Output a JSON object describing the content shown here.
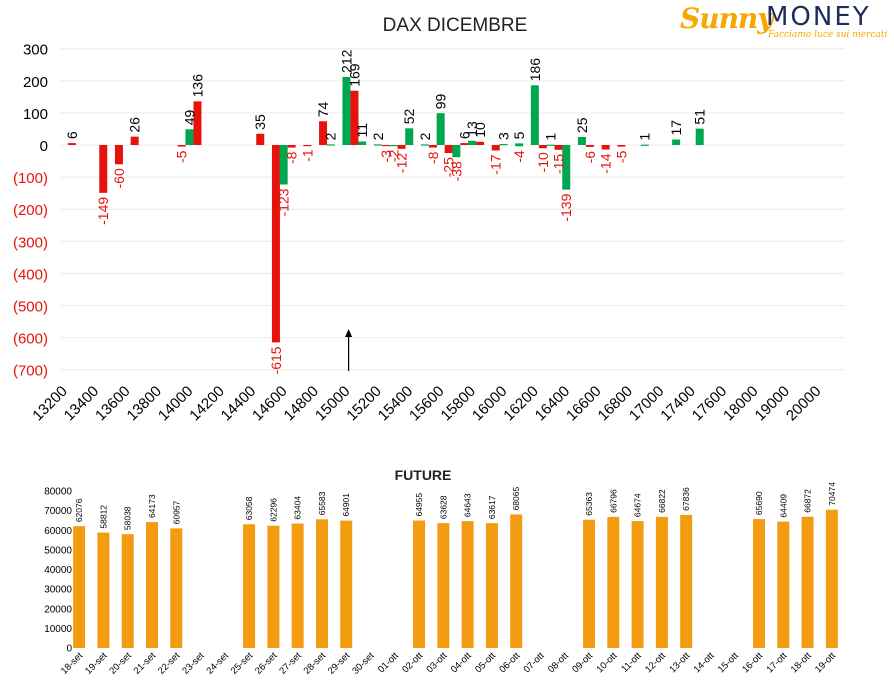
{
  "logo": {
    "brand_left": "Sunny",
    "brand_right": "MONEY",
    "tagline": "Facciamo luce sui mercati"
  },
  "colors": {
    "positive": "#00a650",
    "negative": "#e8120c",
    "future_bar": "#f39c12",
    "axis_text": "#000000",
    "negative_axis_text": "#e8120c"
  },
  "chart_data": [
    {
      "type": "bar",
      "title": "DAX DICEMBRE",
      "xlabel": "",
      "ylabel": "",
      "ylim": [
        -700,
        300
      ],
      "yticks": [
        300,
        200,
        100,
        0,
        -100,
        -200,
        -300,
        -400,
        -500,
        -600,
        -700
      ],
      "ytick_labels": [
        "300",
        "200",
        "100",
        "0",
        "(100)",
        "(200)",
        "(300)",
        "(400)",
        "(500)",
        "(600)",
        "(700)"
      ],
      "xtick_labels": [
        "13200",
        "13400",
        "13600",
        "13800",
        "14000",
        "14200",
        "14400",
        "14600",
        "14800",
        "15000",
        "15200",
        "15400",
        "15600",
        "15800",
        "16000",
        "16200",
        "16400",
        "16600",
        "16800",
        "17000",
        "17400",
        "17600",
        "18000",
        "19000",
        "20000"
      ],
      "marker": {
        "at": "15000",
        "shape": "up-arrow"
      },
      "series": [
        {
          "color": "red",
          "points": [
            {
              "x": 13250,
              "value": 6
            },
            {
              "x": 13450,
              "value": -149
            },
            {
              "x": 13550,
              "value": -60
            },
            {
              "x": 13650,
              "value": 26
            },
            {
              "x": 13950,
              "value": -5
            },
            {
              "x": 14050,
              "value": 136
            },
            {
              "x": 14450,
              "value": 35
            },
            {
              "x": 14550,
              "value": -615
            },
            {
              "x": 14650,
              "value": -8
            },
            {
              "x": 14750,
              "value": -1
            },
            {
              "x": 14850,
              "value": 74
            },
            {
              "x": 15050,
              "value": 169
            },
            {
              "x": 15250,
              "value": -3
            },
            {
              "x": 15350,
              "value": -12
            },
            {
              "x": 15550,
              "value": -8
            },
            {
              "x": 15650,
              "value": -25
            },
            {
              "x": 15750,
              "value": 6
            },
            {
              "x": 15850,
              "value": 10
            },
            {
              "x": 15950,
              "value": -17
            },
            {
              "x": 16250,
              "value": -10
            },
            {
              "x": 16350,
              "value": -15
            },
            {
              "x": 16550,
              "value": -6
            },
            {
              "x": 16650,
              "value": -14
            },
            {
              "x": 16750,
              "value": -5
            }
          ]
        },
        {
          "color": "green",
          "points": [
            {
              "x": 14050,
              "value": 49
            },
            {
              "x": 14650,
              "value": -123
            },
            {
              "x": 14950,
              "value": 2
            },
            {
              "x": 15050,
              "value": 212
            },
            {
              "x": 15150,
              "value": 11
            },
            {
              "x": 15250,
              "value": 2
            },
            {
              "x": 15350,
              "value": -2
            },
            {
              "x": 15450,
              "value": 52
            },
            {
              "x": 15550,
              "value": 2
            },
            {
              "x": 15650,
              "value": 99
            },
            {
              "x": 15750,
              "value": -38
            },
            {
              "x": 15850,
              "value": 13
            },
            {
              "x": 16050,
              "value": 3
            },
            {
              "x": 16150,
              "value": -4
            },
            {
              "x": 16150,
              "value": 5
            },
            {
              "x": 16250,
              "value": 186
            },
            {
              "x": 16350,
              "value": 1
            },
            {
              "x": 16450,
              "value": -139
            },
            {
              "x": 16550,
              "value": 25
            },
            {
              "x": 16950,
              "value": 1
            },
            {
              "x": 17300,
              "value": 17
            },
            {
              "x": 17500,
              "value": 51
            }
          ]
        }
      ]
    },
    {
      "type": "bar",
      "title": "FUTURE",
      "ylim": [
        0,
        80000
      ],
      "yticks": [
        0,
        10000,
        20000,
        30000,
        40000,
        50000,
        60000,
        70000,
        80000
      ],
      "categories": [
        "18-set",
        "19-set",
        "20-set",
        "21-set",
        "22-set",
        "23-set",
        "24-set",
        "25-set",
        "26-set",
        "27-set",
        "28-set",
        "29-set",
        "30-set",
        "01-ott",
        "02-ott",
        "03-ott",
        "04-ott",
        "05-ott",
        "06-ott",
        "07-ott",
        "08-ott",
        "09-ott",
        "10-ott",
        "11-ott",
        "12-ott",
        "13-ott",
        "14-ott",
        "15-ott",
        "16-ott",
        "17-ott",
        "18-ott",
        "19-ott"
      ],
      "values": [
        62076,
        58812,
        58038,
        64173,
        60957,
        null,
        null,
        63058,
        62296,
        63404,
        65583,
        64901,
        null,
        null,
        64955,
        63628,
        64643,
        63617,
        68065,
        null,
        null,
        65363,
        66796,
        64674,
        66822,
        67836,
        null,
        null,
        65690,
        64409,
        66872,
        70474
      ]
    }
  ]
}
